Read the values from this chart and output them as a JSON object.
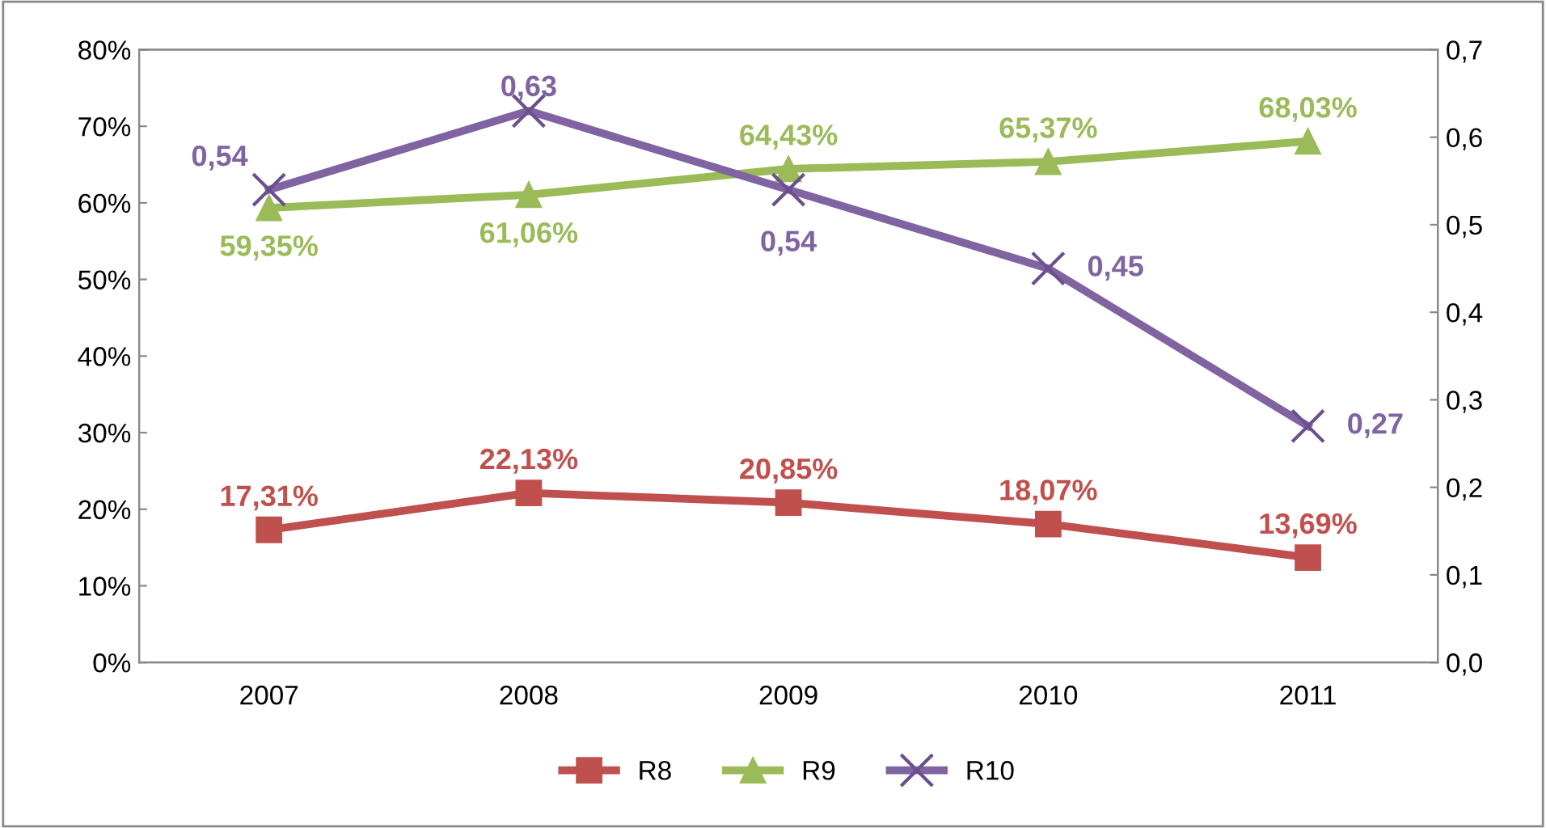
{
  "chart_data": {
    "type": "line",
    "categories": [
      "2007",
      "2008",
      "2009",
      "2010",
      "2011"
    ],
    "series": [
      {
        "name": "R8",
        "color": "#c0504d",
        "marker": "square",
        "values": [
          17.31,
          22.13,
          20.85,
          18.07,
          13.69
        ],
        "value_labels": [
          "17,31%",
          "22,13%",
          "20,85%",
          "18,07%",
          "13,69%"
        ]
      },
      {
        "name": "R9",
        "color": "#9bbb59",
        "marker": "triangle",
        "values": [
          59.35,
          61.06,
          64.43,
          65.37,
          68.03
        ],
        "value_labels": [
          "59,35%",
          "61,06%",
          "64,43%",
          "65,37%",
          "68,03%"
        ]
      },
      {
        "name": "R10",
        "color": "#8064a2",
        "marker": "cross",
        "axis": "y2",
        "values": [
          0.54,
          0.63,
          0.54,
          0.45,
          0.27
        ],
        "value_labels": [
          "0,54",
          "0,63",
          "0,54",
          "0,45",
          "0,27"
        ]
      }
    ],
    "ylim": [
      0,
      80
    ],
    "yticks": [
      {
        "value": 0,
        "label": "0%"
      },
      {
        "value": 10,
        "label": "10%"
      },
      {
        "value": 20,
        "label": "20%"
      },
      {
        "value": 30,
        "label": "30%"
      },
      {
        "value": 40,
        "label": "40%"
      },
      {
        "value": 50,
        "label": "50%"
      },
      {
        "value": 60,
        "label": "60%"
      },
      {
        "value": 70,
        "label": "70%"
      },
      {
        "value": 80,
        "label": "80%"
      }
    ],
    "y2lim": [
      0,
      0.7
    ],
    "y2ticks": [
      {
        "value": 0,
        "label": "0,0"
      },
      {
        "value": 0.1,
        "label": "0,1"
      },
      {
        "value": 0.2,
        "label": "0,2"
      },
      {
        "value": 0.3,
        "label": "0,3"
      },
      {
        "value": 0.4,
        "label": "0,4"
      },
      {
        "value": 0.5,
        "label": "0,5"
      },
      {
        "value": 0.6,
        "label": "0,6"
      },
      {
        "value": 0.7,
        "label": "0,7"
      }
    ],
    "legend": "bottom",
    "grid": false,
    "line_style": "solid"
  }
}
